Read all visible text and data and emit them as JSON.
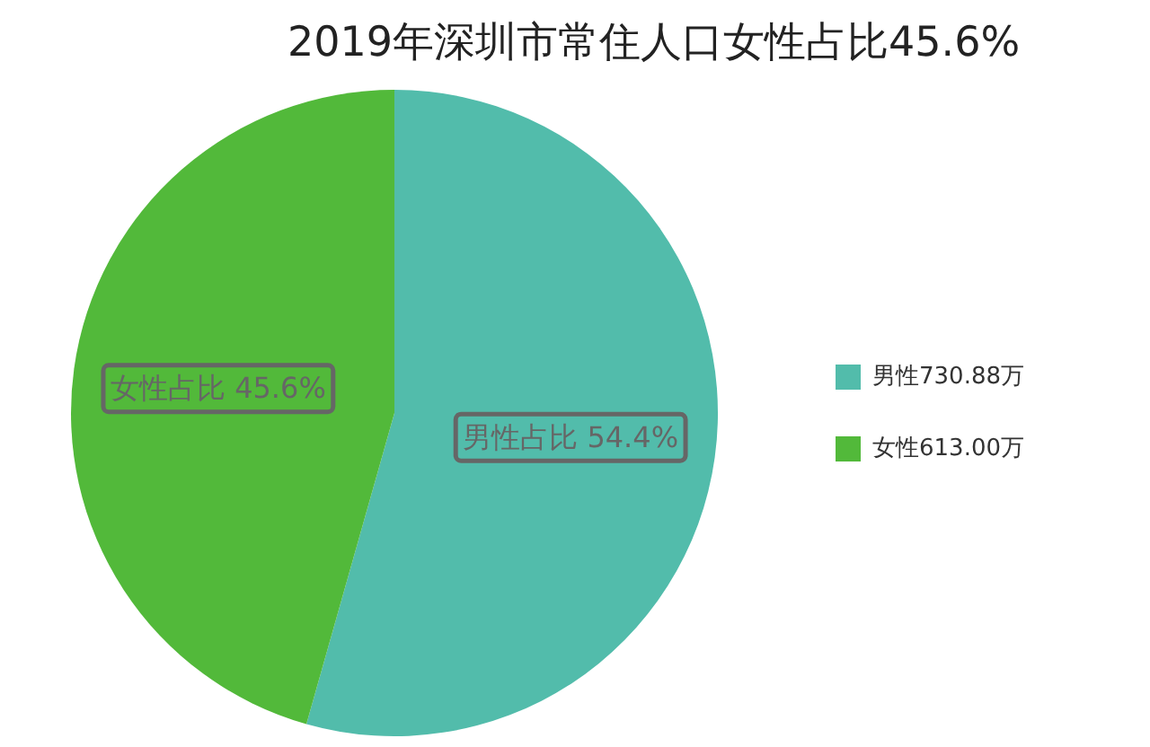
{
  "chart_data": {
    "type": "pie",
    "title": "2019年深圳市常住人口女性占比45.6%",
    "categories": [
      "男性730.88万",
      "女性613.00万"
    ],
    "values": [
      730.88,
      613.0
    ],
    "colors": [
      "#52bcab",
      "#52b93a"
    ],
    "value_labels": [
      "男性占比 54.4%",
      "女性占比 45.6%"
    ],
    "legend": "right"
  }
}
